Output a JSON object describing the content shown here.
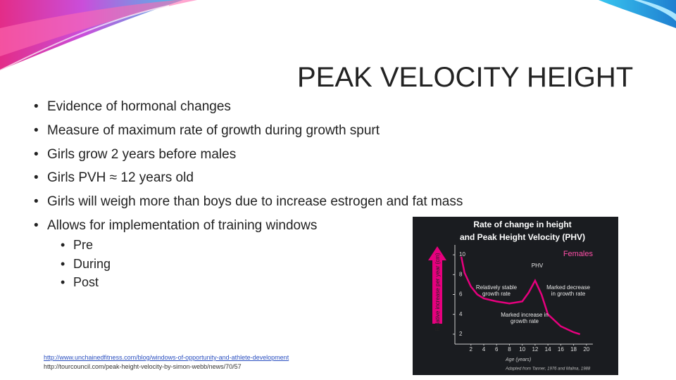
{
  "slide": {
    "title": "PEAK VELOCITY HEIGHT",
    "bullets": [
      "Evidence of hormonal changes",
      "Measure of maximum rate of growth during growth spurt",
      "Girls grow 2 years before males",
      "Girls PVH ≈ 12 years old",
      "Girls will weigh more than boys due to increase estrogen and fat mass",
      "Allows for implementation of training windows"
    ],
    "sub_bullets": [
      "Pre",
      "During",
      "Post"
    ],
    "links": [
      "http://www.unchainedfitness.com/blog/windows-of-opportunity-and-athlete-development",
      "http://tourcouncil.com/peak-height-velocity-by-simon-webb/news/70/57"
    ]
  },
  "chart_data": {
    "type": "line",
    "title": [
      "Rate of change in height",
      "and Peak Height Velocity (PHV)"
    ],
    "ylabel": "Relative increase per year (cm)",
    "xlabel": "Age (years)",
    "source": "Adapted from Tanner, 1976 and Malina, 1988",
    "x": [
      0.5,
      1,
      2,
      3,
      4,
      6,
      8,
      10,
      11,
      12,
      13,
      14,
      16,
      18,
      19
    ],
    "series": [
      {
        "name": "Females",
        "color": "#e6007e",
        "values": [
          9.8,
          8.2,
          6.8,
          6,
          5.6,
          5.3,
          5.1,
          5.3,
          6.2,
          7.4,
          6,
          4,
          2.8,
          2.2,
          2
        ]
      }
    ],
    "annotations": [
      "PHV",
      "Relatively stable growth rate",
      "Marked decrease in growth rate",
      "Marked increase in growth rate"
    ],
    "xlim": [
      -0.5,
      21
    ],
    "ylim": [
      1,
      11
    ],
    "xticks": [
      2,
      4,
      6,
      8,
      10,
      12,
      14,
      16,
      18,
      20
    ],
    "yticks": [
      2,
      4,
      6,
      8,
      10
    ],
    "grid": false
  }
}
